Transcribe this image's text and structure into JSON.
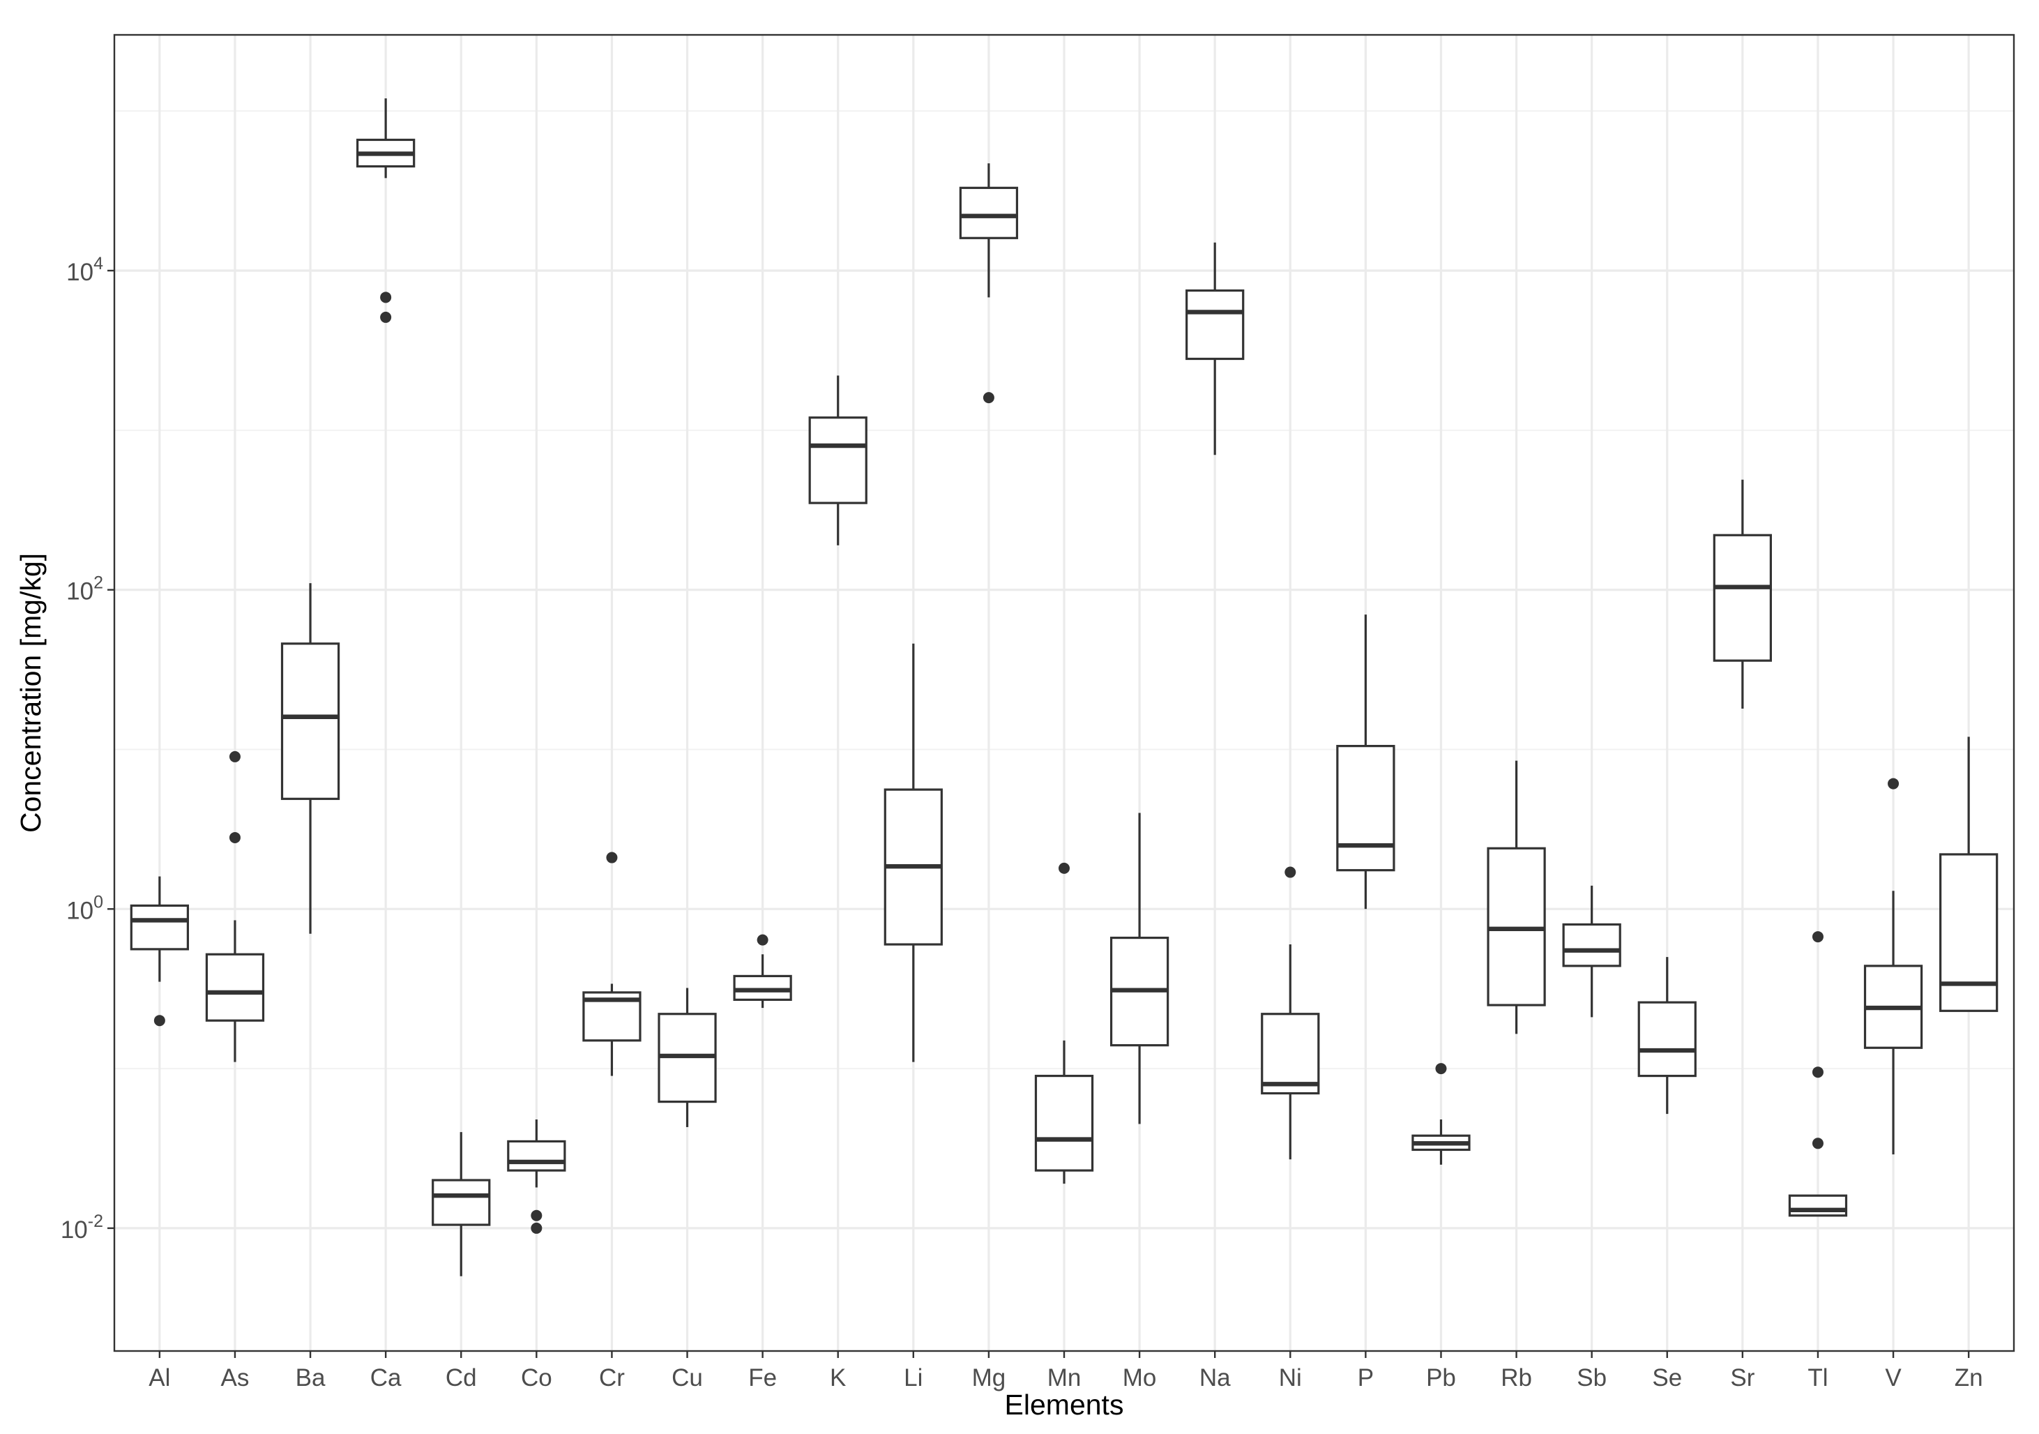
{
  "chart_data": {
    "type": "boxplot",
    "xlabel": "Elements",
    "ylabel": "Concentration [mg/kg]",
    "y_scale": "log10",
    "ylim": [
      0.0017,
      300000
    ],
    "y_major_ticks": [
      0.01,
      1,
      100,
      10000
    ],
    "y_tick_labels": [
      {
        "base": "10",
        "exp": "-2"
      },
      {
        "base": "10",
        "exp": "0"
      },
      {
        "base": "10",
        "exp": "2"
      },
      {
        "base": "10",
        "exp": "4"
      }
    ],
    "y_minor_ticks": [
      0.1,
      10,
      1000,
      100000
    ],
    "grid": true,
    "theme": "bw",
    "box_color": "#333333",
    "categories": [
      "Al",
      "As",
      "Ba",
      "Ca",
      "Cd",
      "Co",
      "Cr",
      "Cu",
      "Fe",
      "K",
      "Li",
      "Mg",
      "Mn",
      "Mo",
      "Na",
      "Ni",
      "P",
      "Pb",
      "Rb",
      "Sb",
      "Se",
      "Sr",
      "Tl",
      "V",
      "Zn"
    ],
    "boxes": [
      {
        "name": "Al",
        "whisker_low": 0.35,
        "q1": 0.56,
        "median": 0.85,
        "q3": 1.05,
        "whisker_high": 1.6,
        "outliers": [
          0.2
        ]
      },
      {
        "name": "As",
        "whisker_low": 0.11,
        "q1": 0.2,
        "median": 0.3,
        "q3": 0.52,
        "whisker_high": 0.85,
        "outliers": [
          2.8,
          9.0
        ]
      },
      {
        "name": "Ba",
        "whisker_low": 0.7,
        "q1": 4.9,
        "median": 16,
        "q3": 46,
        "whisker_high": 110,
        "outliers": []
      },
      {
        "name": "Ca",
        "whisker_low": 38000,
        "q1": 45000,
        "median": 54000,
        "q3": 66000,
        "whisker_high": 120000,
        "outliers": [
          5100,
          6800
        ]
      },
      {
        "name": "Cd",
        "whisker_low": 0.005,
        "q1": 0.0105,
        "median": 0.016,
        "q3": 0.02,
        "whisker_high": 0.04,
        "outliers": []
      },
      {
        "name": "Co",
        "whisker_low": 0.018,
        "q1": 0.023,
        "median": 0.026,
        "q3": 0.035,
        "whisker_high": 0.048,
        "outliers": [
          0.01,
          0.012
        ]
      },
      {
        "name": "Cr",
        "whisker_low": 0.09,
        "q1": 0.15,
        "median": 0.27,
        "q3": 0.3,
        "whisker_high": 0.34,
        "outliers": [
          2.1
        ]
      },
      {
        "name": "Cu",
        "whisker_low": 0.043,
        "q1": 0.062,
        "median": 0.12,
        "q3": 0.22,
        "whisker_high": 0.32,
        "outliers": []
      },
      {
        "name": "Fe",
        "whisker_low": 0.24,
        "q1": 0.27,
        "median": 0.31,
        "q3": 0.38,
        "whisker_high": 0.52,
        "outliers": [
          0.64
        ]
      },
      {
        "name": "K",
        "whisker_low": 190,
        "q1": 350,
        "median": 800,
        "q3": 1200,
        "whisker_high": 2200,
        "outliers": []
      },
      {
        "name": "Li",
        "whisker_low": 0.11,
        "q1": 0.6,
        "median": 1.85,
        "q3": 5.6,
        "whisker_high": 46,
        "outliers": []
      },
      {
        "name": "Mg",
        "whisker_low": 6800,
        "q1": 16000,
        "median": 22000,
        "q3": 33000,
        "whisker_high": 47000,
        "outliers": [
          1600
        ]
      },
      {
        "name": "Mn",
        "whisker_low": 0.019,
        "q1": 0.023,
        "median": 0.036,
        "q3": 0.09,
        "whisker_high": 0.15,
        "outliers": [
          1.8
        ]
      },
      {
        "name": "Mo",
        "whisker_low": 0.045,
        "q1": 0.14,
        "median": 0.31,
        "q3": 0.66,
        "whisker_high": 4.0,
        "outliers": []
      },
      {
        "name": "Na",
        "whisker_low": 700,
        "q1": 2800,
        "median": 5500,
        "q3": 7500,
        "whisker_high": 15000,
        "outliers": []
      },
      {
        "name": "Ni",
        "whisker_low": 0.027,
        "q1": 0.07,
        "median": 0.08,
        "q3": 0.22,
        "whisker_high": 0.6,
        "outliers": [
          1.7
        ]
      },
      {
        "name": "P",
        "whisker_low": 1.0,
        "q1": 1.75,
        "median": 2.5,
        "q3": 10.5,
        "whisker_high": 70,
        "outliers": []
      },
      {
        "name": "Pb",
        "whisker_low": 0.025,
        "q1": 0.031,
        "median": 0.034,
        "q3": 0.038,
        "whisker_high": 0.048,
        "outliers": [
          0.1
        ]
      },
      {
        "name": "Rb",
        "whisker_low": 0.165,
        "q1": 0.25,
        "median": 0.75,
        "q3": 2.4,
        "whisker_high": 8.5,
        "outliers": []
      },
      {
        "name": "Sb",
        "whisker_low": 0.21,
        "q1": 0.44,
        "median": 0.55,
        "q3": 0.8,
        "whisker_high": 1.4,
        "outliers": []
      },
      {
        "name": "Se",
        "whisker_low": 0.052,
        "q1": 0.09,
        "median": 0.13,
        "q3": 0.26,
        "whisker_high": 0.5,
        "outliers": []
      },
      {
        "name": "Sr",
        "whisker_low": 18,
        "q1": 36,
        "median": 104,
        "q3": 220,
        "whisker_high": 490,
        "outliers": []
      },
      {
        "name": "Tl",
        "whisker_low": 0.012,
        "q1": 0.012,
        "median": 0.013,
        "q3": 0.016,
        "whisker_high": 0.016,
        "outliers": [
          0.034,
          0.095,
          0.67
        ]
      },
      {
        "name": "V",
        "whisker_low": 0.029,
        "q1": 0.135,
        "median": 0.24,
        "q3": 0.44,
        "whisker_high": 1.3,
        "outliers": [
          6.1
        ]
      },
      {
        "name": "Zn",
        "whisker_low": 0.23,
        "q1": 0.23,
        "median": 0.34,
        "q3": 2.2,
        "whisker_high": 12,
        "outliers": []
      }
    ]
  }
}
